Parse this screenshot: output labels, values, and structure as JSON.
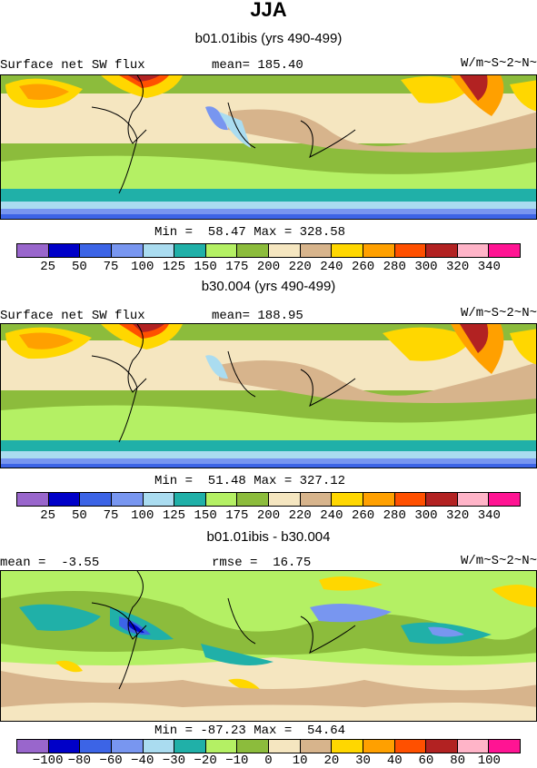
{
  "figure_title": "JJA",
  "colors": [
    "#9966cc",
    "#0000c8",
    "#3c64e6",
    "#7896f0",
    "#aadcf0",
    "#20b0a8",
    "#b4f064",
    "#8cbc3c",
    "#f5e6c0",
    "#d7b48c",
    "#ffd700",
    "#ffa000",
    "#ff5000",
    "#b22222",
    "#ffb4c8",
    "#ff1493"
  ],
  "panels": [
    {
      "subtitle": "b01.01ibis (yrs 490-499)",
      "left_label": "Surface net SW flux",
      "center_label": "mean= 185.40",
      "units": "W/m~S~2~N~",
      "minmax": "Min =  58.47 Max = 328.58",
      "levels": [
        "25",
        "50",
        "75",
        "100",
        "125",
        "150",
        "175",
        "200",
        "220",
        "240",
        "260",
        "280",
        "300",
        "320",
        "340"
      ]
    },
    {
      "subtitle": "b30.004 (yrs 490-499)",
      "left_label": "Surface net SW flux",
      "center_label": "mean= 188.95",
      "units": "W/m~S~2~N~",
      "minmax": "Min =  51.48 Max = 327.12",
      "levels": [
        "25",
        "50",
        "75",
        "100",
        "125",
        "150",
        "175",
        "200",
        "220",
        "240",
        "260",
        "280",
        "300",
        "320",
        "340"
      ]
    },
    {
      "subtitle": "b01.01ibis - b30.004",
      "left_label": "mean =  -3.55",
      "center_label": "rmse =  16.75",
      "units": "W/m~S~2~N~",
      "minmax": "Min = -87.23 Max =  54.64",
      "levels": [
        "−100",
        "−80",
        "−60",
        "−40",
        "−30",
        "−20",
        "−10",
        "0",
        "10",
        "20",
        "30",
        "40",
        "60",
        "80",
        "100"
      ]
    }
  ]
}
